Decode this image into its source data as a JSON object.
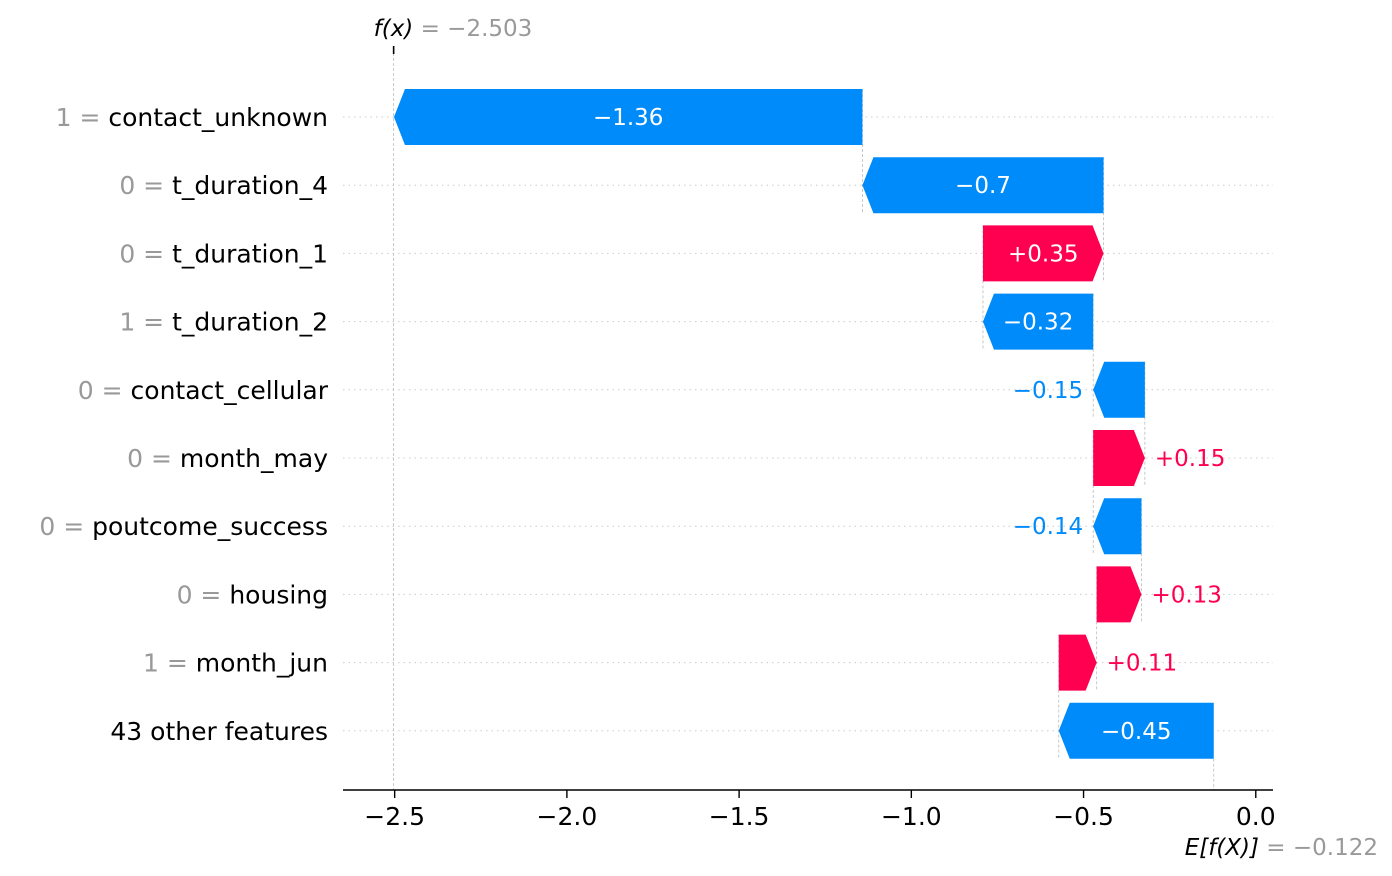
{
  "chart_data": {
    "type": "waterfall",
    "fx_label": "f(x)",
    "fx_value": "−2.503",
    "fx": -2.503,
    "base_label": "E[f(X)]",
    "base_value_text": "−0.122",
    "base_value": -0.122,
    "xlim": [
      -2.65,
      0.05
    ],
    "x_ticks": [
      -2.5,
      -2.0,
      -1.5,
      -1.0,
      -0.5,
      0.0
    ],
    "x_tick_labels": [
      "−2.5",
      "−2.0",
      "−1.5",
      "−1.0",
      "−0.5",
      "0.0"
    ],
    "features": [
      {
        "value": "1 =",
        "name": "contact_unknown",
        "contribution": -1.36,
        "label": "−1.36"
      },
      {
        "value": "0 =",
        "name": "t_duration_4",
        "contribution": -0.7,
        "label": "−0.7"
      },
      {
        "value": "0 =",
        "name": "t_duration_1",
        "contribution": 0.35,
        "label": "+0.35"
      },
      {
        "value": "1 =",
        "name": "t_duration_2",
        "contribution": -0.32,
        "label": "−0.32"
      },
      {
        "value": "0 =",
        "name": "contact_cellular",
        "contribution": -0.15,
        "label": "−0.15"
      },
      {
        "value": "0 =",
        "name": "month_may",
        "contribution": 0.15,
        "label": "+0.15"
      },
      {
        "value": "0 =",
        "name": "poutcome_success",
        "contribution": -0.14,
        "label": "−0.14"
      },
      {
        "value": "0 =",
        "name": "housing",
        "contribution": 0.13,
        "label": "+0.13"
      },
      {
        "value": "1 =",
        "name": "month_jun",
        "contribution": 0.11,
        "label": "+0.11"
      },
      {
        "value": "",
        "name": "43 other features",
        "contribution": -0.45,
        "label": "−0.45"
      }
    ],
    "colors": {
      "positive": "#ff0051",
      "negative": "#008bfb",
      "annotation": "#999999"
    }
  }
}
